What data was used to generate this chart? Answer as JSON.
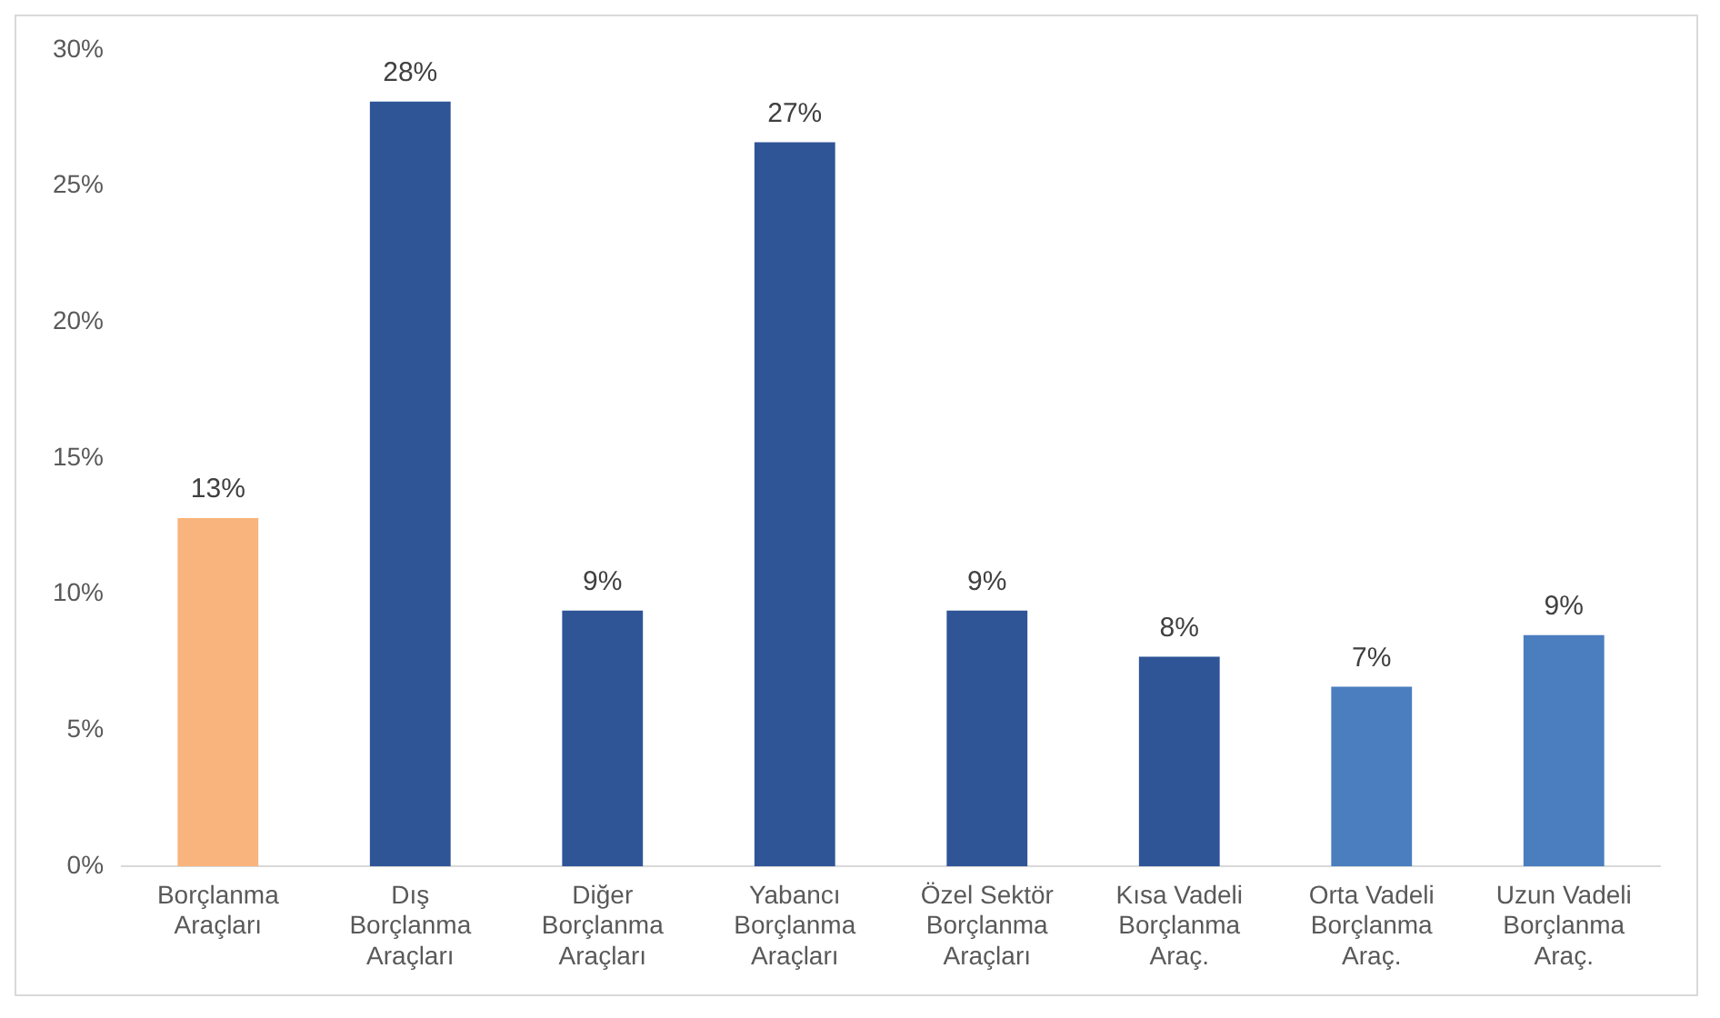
{
  "chart_data": {
    "type": "bar",
    "categories": [
      "Borçlanma Araçları",
      "Dış Borçlanma Araçları",
      "Diğer Borçlanma Araçları",
      "Yabancı Borçlanma Araçları",
      "Özel Sektör Borçlanma Araçları",
      "Kısa Vadeli Borçlanma Araç.",
      "Orta Vadeli Borçlanma Araç.",
      "Uzun Vadeli Borçlanma Araç."
    ],
    "values": [
      12.8,
      28.1,
      9.4,
      26.6,
      9.4,
      7.7,
      6.6,
      8.5
    ],
    "colors": [
      "#f8b47c",
      "#2f5597",
      "#2f5597",
      "#2f5597",
      "#2f5597",
      "#2f5597",
      "#4a7ebf",
      "#4a7ebf"
    ],
    "value_labels": [
      "13%",
      "28%",
      "9%",
      "27%",
      "9%",
      "8%",
      "7%",
      "9%"
    ],
    "ylim": [
      0,
      30
    ],
    "yticks": [
      {
        "value": 0,
        "label": "0%"
      },
      {
        "value": 5,
        "label": "5%"
      },
      {
        "value": 10,
        "label": "10%"
      },
      {
        "value": 15,
        "label": "15%"
      },
      {
        "value": 20,
        "label": "20%"
      },
      {
        "value": 25,
        "label": "25%"
      },
      {
        "value": 30,
        "label": "30%"
      }
    ],
    "grid": false,
    "legend": false
  }
}
